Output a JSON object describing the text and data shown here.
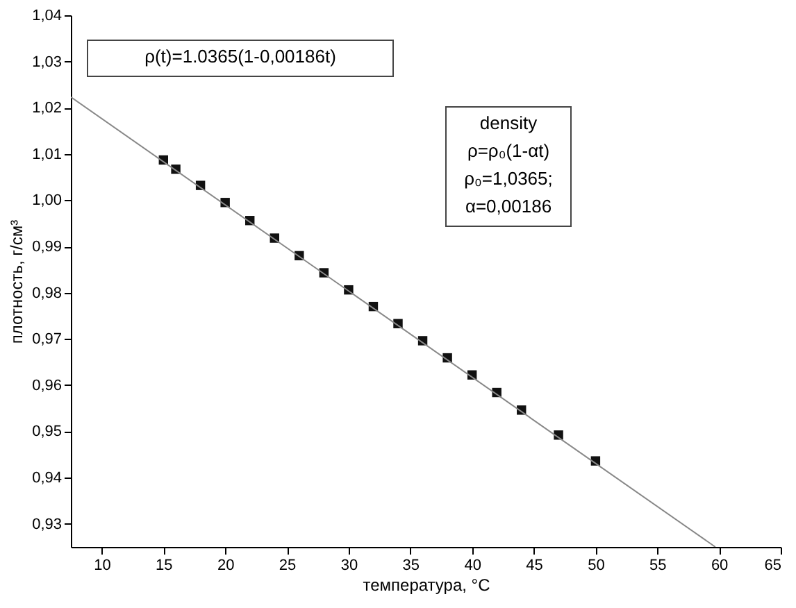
{
  "chart_data": {
    "type": "scatter",
    "xlabel": "температура, °C",
    "ylabel": "плотность, г/см³",
    "x": [
      15,
      16,
      18,
      20,
      22,
      24,
      26,
      28,
      30,
      32,
      34,
      36,
      38,
      40,
      42,
      44,
      47,
      50
    ],
    "series": [
      {
        "type": "scatter",
        "color": "#111111",
        "marker": "square",
        "values": [
          1.0087,
          1.0067,
          1.0032,
          0.9995,
          0.9956,
          0.9918,
          0.988,
          0.9843,
          0.9806,
          0.977,
          0.9733,
          0.9696,
          0.9659,
          0.9622,
          0.9584,
          0.9546,
          0.9492,
          0.9436
        ]
      },
      {
        "type": "line",
        "color": "#888888",
        "x": [
          7.5,
          59.7
        ],
        "values": [
          1.0223,
          0.925
        ]
      }
    ],
    "xlim": [
      7.5,
      65
    ],
    "xticks": [
      10,
      15,
      20,
      25,
      30,
      35,
      40,
      45,
      50,
      55,
      60,
      65
    ],
    "ylim": [
      0.925,
      1.04
    ],
    "yticks": [
      {
        "value": 0.93,
        "label": "0,93"
      },
      {
        "value": 0.94,
        "label": "0,94"
      },
      {
        "value": 0.95,
        "label": "0,95"
      },
      {
        "value": 0.96,
        "label": "0,96"
      },
      {
        "value": 0.97,
        "label": "0,97"
      },
      {
        "value": 0.98,
        "label": "0,98"
      },
      {
        "value": 0.99,
        "label": "0,99"
      },
      {
        "value": 1.0,
        "label": "1,00"
      },
      {
        "value": 1.01,
        "label": "1,01"
      },
      {
        "value": 1.02,
        "label": "1,02"
      },
      {
        "value": 1.03,
        "label": "1,03"
      },
      {
        "value": 1.04,
        "label": "1,04"
      }
    ],
    "grid": false,
    "annotations": [
      "ρ(t)=1.0365(1-0,00186t)",
      "density\nρ=ρ₀(1-αt)\nρ₀=1,0365;\nα=0,00186"
    ]
  }
}
